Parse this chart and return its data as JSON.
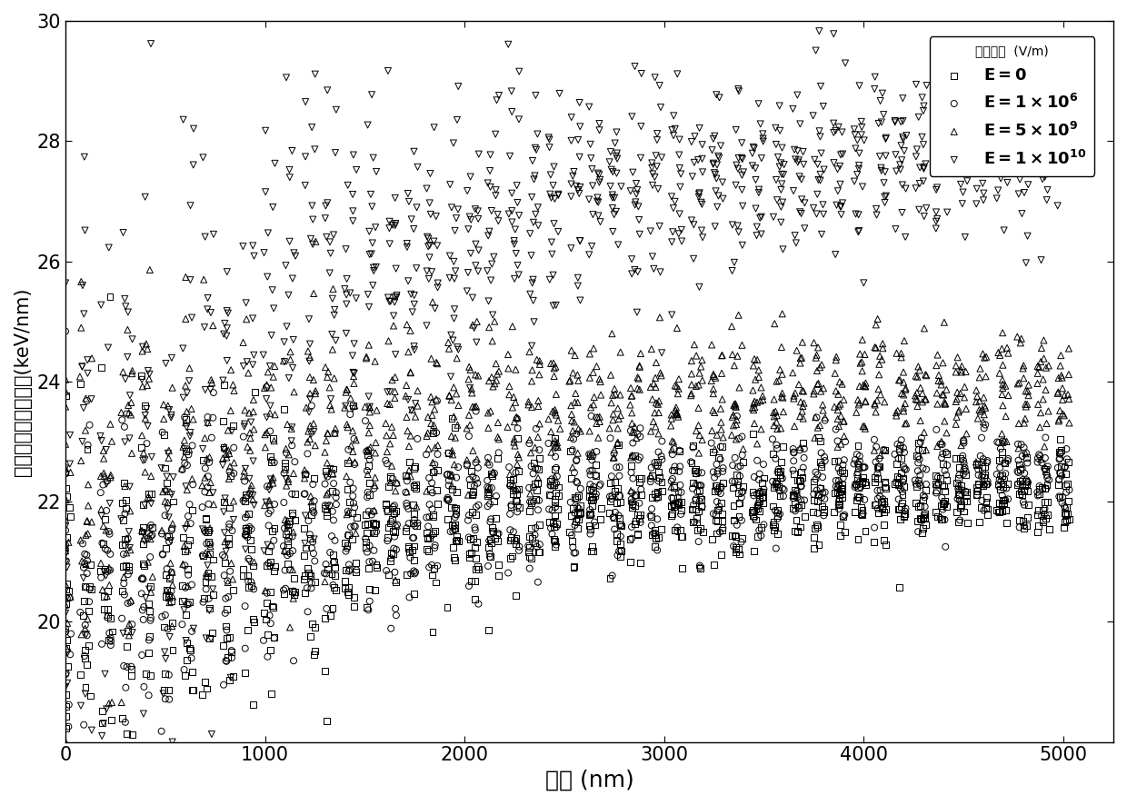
{
  "xlabel": "深度 (nm)",
  "ylabel": "单位深度的能量沉积(keV/nm)",
  "xlim": [
    0,
    5250
  ],
  "ylim": [
    18,
    30
  ],
  "xticks": [
    0,
    1000,
    2000,
    3000,
    4000,
    5000
  ],
  "yticks": [
    20,
    22,
    24,
    26,
    28,
    30
  ],
  "legend_title": "电场强度  (V/m)",
  "series": {
    "E0": {
      "base_y_start": 20.0,
      "base_y_end": 22.2,
      "noise_start": 1.5,
      "noise_end": 0.35,
      "marker": "s",
      "n_runs": 20,
      "n_per_run": 50
    },
    "E1e6": {
      "base_y_start": 20.2,
      "base_y_end": 22.5,
      "noise_start": 1.5,
      "noise_end": 0.35,
      "marker": "o",
      "n_runs": 20,
      "n_per_run": 50
    },
    "E5e9": {
      "base_y_start": 21.5,
      "base_y_end": 24.0,
      "noise_start": 1.5,
      "noise_end": 0.45,
      "marker": "^",
      "n_runs": 20,
      "n_per_run": 50
    },
    "E1e10": {
      "base_y_start": 20.5,
      "base_y_end": 28.2,
      "noise_start": 3.5,
      "noise_end": 0.55,
      "marker": "v",
      "n_runs": 20,
      "n_per_run": 50
    }
  },
  "marker_size": 5,
  "bg_color": "#ffffff",
  "xlabel_fontsize": 18,
  "ylabel_fontsize": 15,
  "tick_fontsize": 15,
  "legend_fontsize": 13
}
